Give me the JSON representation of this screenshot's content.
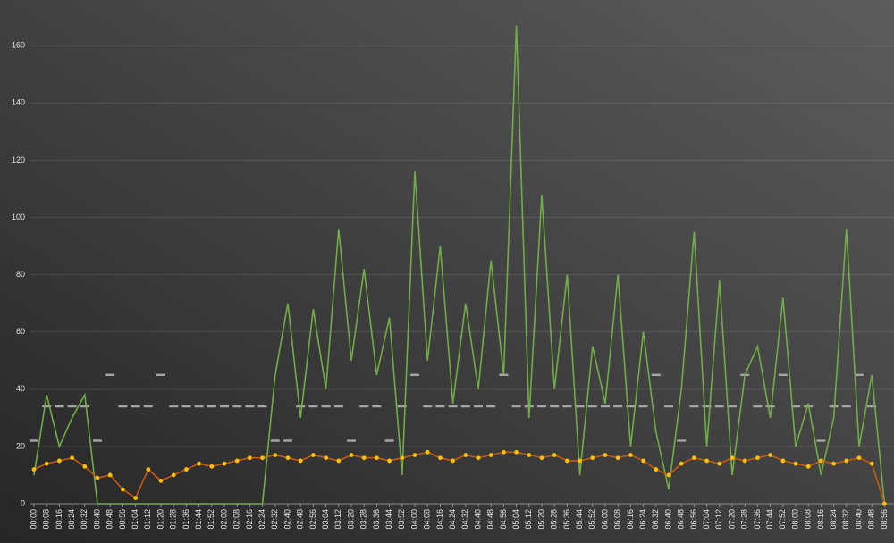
{
  "chart_data": {
    "type": "line",
    "categories": [
      "00:00",
      "00:08",
      "00:16",
      "00:24",
      "00:32",
      "00:40",
      "00:48",
      "00:56",
      "01:04",
      "01:12",
      "01:20",
      "01:28",
      "01:36",
      "01:44",
      "01:52",
      "02:00",
      "02:08",
      "02:16",
      "02:24",
      "02:32",
      "02:40",
      "02:48",
      "02:56",
      "03:04",
      "03:12",
      "03:20",
      "03:28",
      "03:36",
      "03:44",
      "03:52",
      "04:00",
      "04:08",
      "04:16",
      "04:24",
      "04:32",
      "04:40",
      "04:48",
      "04:56",
      "05:04",
      "05:12",
      "05:20",
      "05:28",
      "05:36",
      "05:44",
      "05:52",
      "06:00",
      "06:08",
      "06:16",
      "06:24",
      "06:32",
      "06:40",
      "06:48",
      "06:56",
      "07:04",
      "07:12",
      "07:20",
      "07:28",
      "07:36",
      "07:44",
      "07:52",
      "08:00",
      "08:08",
      "08:16",
      "08:24",
      "08:32",
      "08:40",
      "08:48",
      "08:56"
    ],
    "series": [
      {
        "color": "#a6a6a6",
        "style": "markers",
        "values": [
          22,
          34,
          34,
          34,
          34,
          22,
          45,
          34,
          34,
          34,
          45,
          34,
          34,
          34,
          34,
          34,
          34,
          34,
          34,
          22,
          22,
          34,
          34,
          34,
          34,
          22,
          34,
          34,
          22,
          34,
          45,
          34,
          34,
          34,
          34,
          34,
          34,
          45,
          34,
          34,
          34,
          34,
          34,
          34,
          34,
          34,
          34,
          34,
          34,
          45,
          34,
          22,
          34,
          34,
          34,
          34,
          45,
          34,
          34,
          45,
          34,
          34,
          22,
          34,
          34,
          45,
          34,
          null
        ]
      },
      {
        "color": "#70ad47",
        "style": "line",
        "values": [
          10,
          38,
          20,
          30,
          38,
          0,
          0,
          0,
          0,
          0,
          0,
          0,
          0,
          0,
          0,
          0,
          0,
          0,
          0,
          45,
          70,
          30,
          68,
          40,
          96,
          50,
          82,
          45,
          65,
          10,
          116,
          50,
          90,
          35,
          70,
          40,
          85,
          45,
          167,
          30,
          108,
          40,
          80,
          10,
          55,
          35,
          80,
          20,
          60,
          25,
          5,
          40,
          95,
          20,
          78,
          10,
          45,
          55,
          30,
          72,
          20,
          35,
          10,
          30,
          96,
          20,
          45,
          0
        ]
      },
      {
        "color": "#c65911",
        "marker_color": "#ffc000",
        "style": "line-markers",
        "values": [
          12,
          14,
          15,
          16,
          13,
          9,
          10,
          5,
          2,
          12,
          8,
          10,
          12,
          14,
          13,
          14,
          15,
          16,
          16,
          17,
          16,
          15,
          17,
          16,
          15,
          17,
          16,
          16,
          15,
          16,
          17,
          18,
          16,
          15,
          17,
          16,
          17,
          18,
          18,
          17,
          16,
          17,
          15,
          15,
          16,
          17,
          16,
          17,
          15,
          12,
          10,
          14,
          16,
          15,
          14,
          16,
          15,
          16,
          17,
          15,
          14,
          13,
          15,
          14,
          15,
          16,
          14,
          0
        ]
      }
    ],
    "ylim": [
      0,
      176
    ],
    "yticks": [
      0,
      20,
      40,
      60,
      80,
      100,
      120,
      140,
      160
    ],
    "grid": true
  }
}
